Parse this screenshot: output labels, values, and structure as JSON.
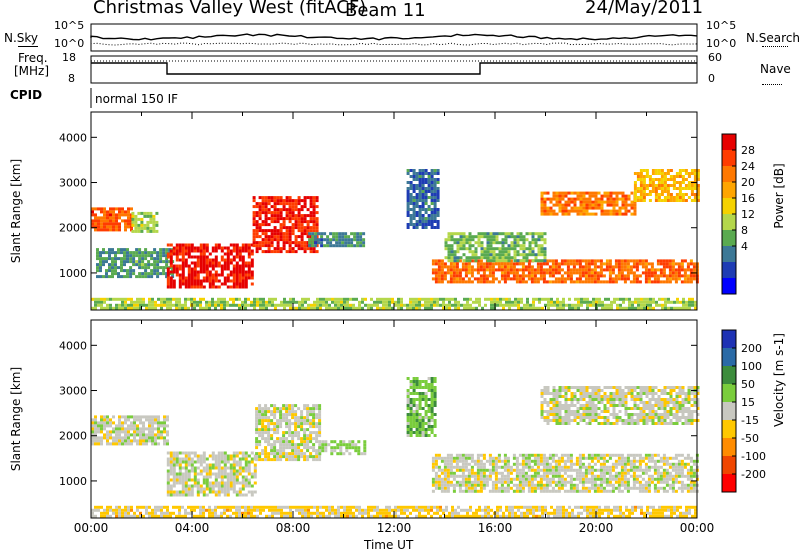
{
  "header": {
    "station": "Christmas Valley West (fitACF)",
    "beam": "Beam 11",
    "date": "24/May/2011"
  },
  "aux_panels": {
    "nsky": {
      "label": "N.Sky",
      "ticks": [
        "10^5",
        "10^0"
      ]
    },
    "nsearch": {
      "label": "N.Search",
      "ticks": [
        "10^5",
        "10^0"
      ]
    },
    "freq": {
      "label_line1": "Freq.",
      "label_line2": "[MHz]",
      "ticks": [
        "18",
        "8"
      ]
    },
    "nave": {
      "label": "Nave",
      "ticks": [
        "60",
        "0"
      ]
    },
    "cpid": {
      "label": "CPID",
      "value": "normal 150 IF"
    }
  },
  "colorbars": {
    "power": {
      "label": "Power [dB]",
      "ticks": [
        "28",
        "24",
        "20",
        "16",
        "12",
        "8",
        "4"
      ],
      "colors": [
        "#e60000",
        "#ff3c00",
        "#ff7800",
        "#ffa500",
        "#f5d200",
        "#b4d74b",
        "#5aaa50",
        "#3c7896",
        "#1e3cb4",
        "#0000ff"
      ]
    },
    "velocity": {
      "label": "Velocity [m s-1]",
      "ticks": [
        "200",
        "100",
        "50",
        "15",
        "-15",
        "-50",
        "-100",
        "-200"
      ],
      "colors": [
        "#1e32b4",
        "#2a6aa6",
        "#3c8c3c",
        "#7acd3c",
        "#c8c8c0",
        "#ffc800",
        "#ff8c00",
        "#f04600",
        "#ff0000"
      ]
    }
  },
  "chart_data": [
    {
      "type": "heatmap",
      "name": "power",
      "ylabel": "Slant Range [km]",
      "yticks": [
        1000,
        2000,
        3000,
        4000
      ],
      "ylim": [
        180,
        4560
      ],
      "xlim": [
        0,
        24
      ],
      "zlabel": "Power [dB]",
      "zlim": [
        0,
        32
      ],
      "regions": [
        {
          "t": [
            0.0,
            1.6
          ],
          "r": [
            1950,
            2450
          ],
          "level": 26
        },
        {
          "t": [
            1.6,
            2.6
          ],
          "r": [
            1900,
            2350
          ],
          "level": 14
        },
        {
          "t": [
            0.2,
            3.2
          ],
          "r": [
            950,
            1550
          ],
          "level": 10
        },
        {
          "t": [
            3.0,
            6.4
          ],
          "r": [
            700,
            1650
          ],
          "level": 30
        },
        {
          "t": [
            6.4,
            9.0
          ],
          "r": [
            1500,
            2700
          ],
          "level": 29
        },
        {
          "t": [
            8.6,
            10.8
          ],
          "r": [
            1600,
            1900
          ],
          "level": 9
        },
        {
          "t": [
            12.5,
            13.8
          ],
          "r": [
            2000,
            3300
          ],
          "level": 7
        },
        {
          "t": [
            13.5,
            24.0
          ],
          "r": [
            800,
            1300
          ],
          "level": 25
        },
        {
          "t": [
            14.0,
            18.0
          ],
          "r": [
            1300,
            1900
          ],
          "level": 12
        },
        {
          "t": [
            17.8,
            21.5
          ],
          "r": [
            2300,
            2800
          ],
          "level": 24
        },
        {
          "t": [
            21.5,
            24.0
          ],
          "r": [
            2600,
            3300
          ],
          "level": 20
        },
        {
          "t": [
            0.0,
            24.0
          ],
          "r": [
            200,
            450
          ],
          "level": 14
        }
      ]
    },
    {
      "type": "heatmap",
      "name": "velocity",
      "ylabel": "Slant Range [km]",
      "yticks": [
        1000,
        2000,
        3000,
        4000
      ],
      "ylim": [
        180,
        4560
      ],
      "xlim": [
        0,
        24
      ],
      "xticks": [
        "00:00",
        "04:00",
        "08:00",
        "12:00",
        "16:00",
        "20:00",
        "00:00"
      ],
      "xlabel": "Time UT",
      "zlabel": "Velocity [m s-1]",
      "zlim": [
        -250,
        250
      ],
      "regions": [
        {
          "t": [
            0.0,
            3.0
          ],
          "r": [
            1800,
            2450
          ],
          "level": 0
        },
        {
          "t": [
            3.0,
            6.5
          ],
          "r": [
            700,
            1650
          ],
          "level": 0
        },
        {
          "t": [
            6.5,
            9.0
          ],
          "r": [
            1500,
            2700
          ],
          "level": 0
        },
        {
          "t": [
            9.0,
            10.8
          ],
          "r": [
            1600,
            1900
          ],
          "level": 40
        },
        {
          "t": [
            12.5,
            13.6
          ],
          "r": [
            2000,
            3300
          ],
          "level": 60
        },
        {
          "t": [
            13.5,
            24.0
          ],
          "r": [
            800,
            1600
          ],
          "level": 0
        },
        {
          "t": [
            17.8,
            24.0
          ],
          "r": [
            2300,
            3100
          ],
          "level": 0
        },
        {
          "t": [
            0.0,
            24.0
          ],
          "r": [
            200,
            450
          ],
          "level": -40
        }
      ]
    }
  ]
}
